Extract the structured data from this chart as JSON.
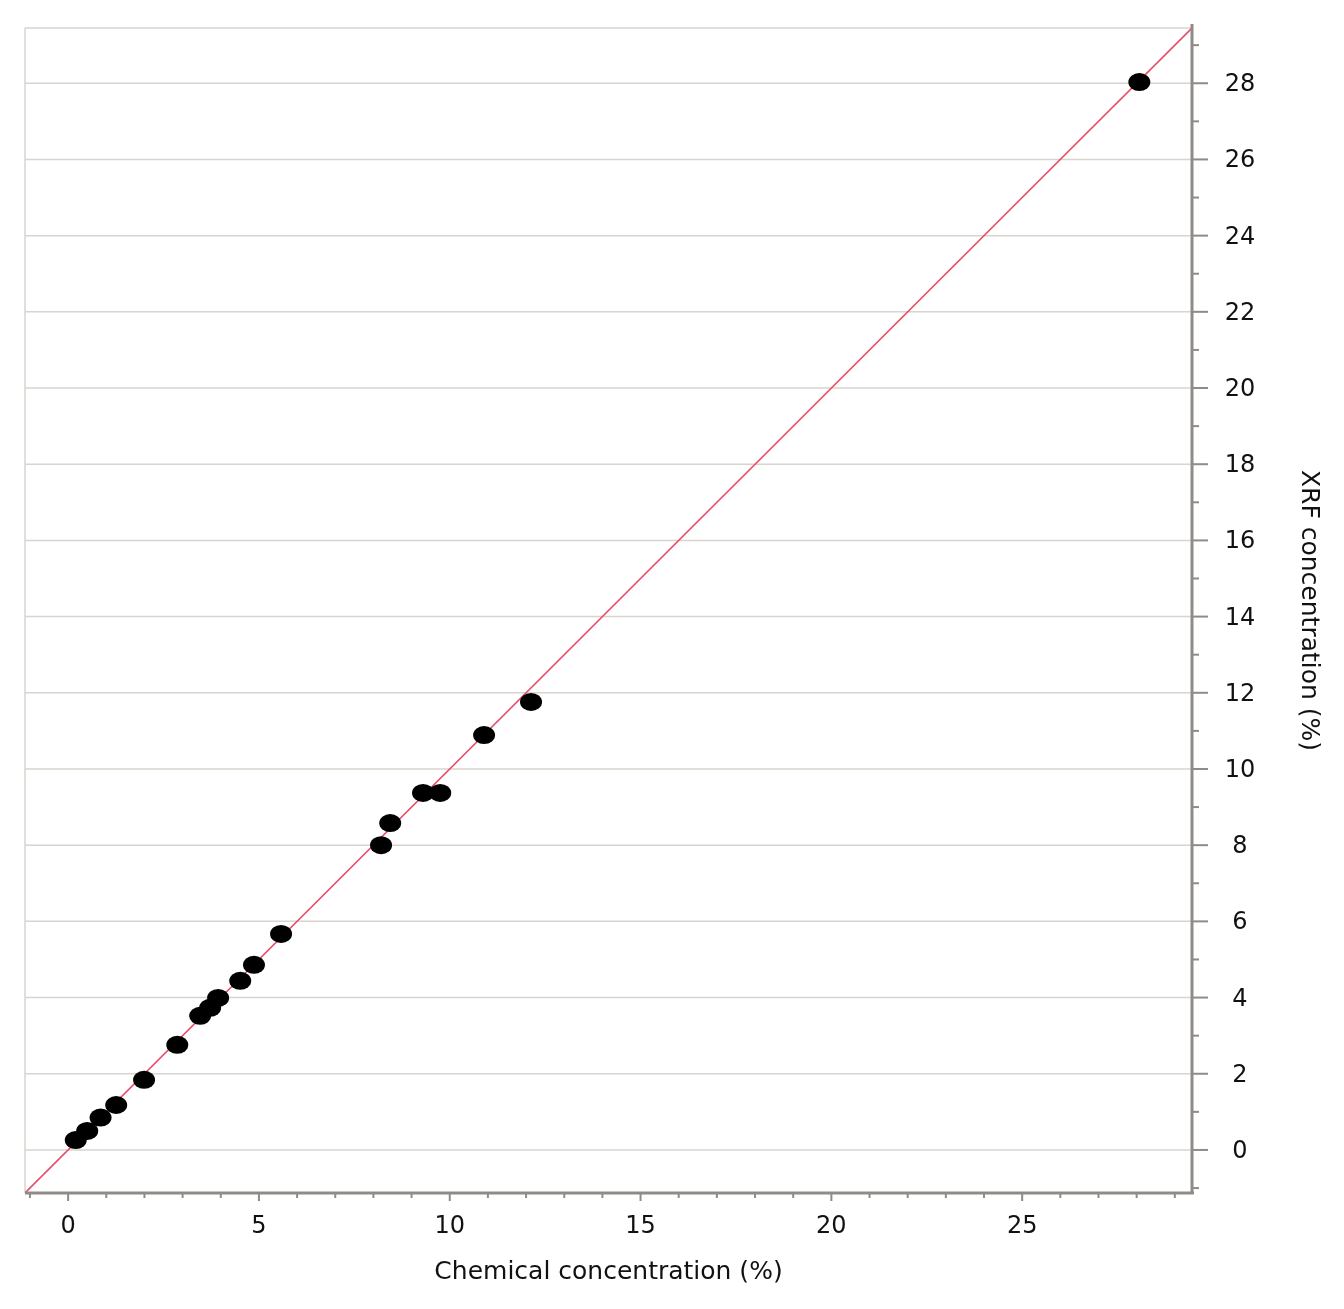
{
  "chart_data": {
    "type": "scatter",
    "xlabel": "Chemical concentration (%)",
    "ylabel": "XRF concentration (%)",
    "xlim": [
      -1.13,
      29.45
    ],
    "ylim": [
      -1.13,
      29.45
    ],
    "xticks": [
      {
        "value": -1,
        "label": null
      },
      0,
      {
        "value": 1,
        "label": null
      },
      {
        "value": 2,
        "label": null
      },
      {
        "value": 3,
        "label": null
      },
      {
        "value": 4,
        "label": null
      },
      5,
      {
        "value": 6,
        "label": null
      },
      {
        "value": 7,
        "label": null
      },
      {
        "value": 8,
        "label": null
      },
      {
        "value": 9,
        "label": null
      },
      10,
      {
        "value": 11,
        "label": null
      },
      {
        "value": 12,
        "label": null
      },
      {
        "value": 13,
        "label": null
      },
      {
        "value": 14,
        "label": null
      },
      15,
      {
        "value": 16,
        "label": null
      },
      {
        "value": 17,
        "label": null
      },
      {
        "value": 18,
        "label": null
      },
      {
        "value": 19,
        "label": null
      },
      20,
      {
        "value": 21,
        "label": null
      },
      {
        "value": 22,
        "label": null
      },
      {
        "value": 23,
        "label": null
      },
      {
        "value": 24,
        "label": null
      },
      25,
      {
        "value": 26,
        "label": null
      },
      {
        "value": 27,
        "label": null
      },
      {
        "value": 28,
        "label": null
      },
      {
        "value": 29,
        "label": null
      }
    ],
    "yticks": [
      {
        "value": -1,
        "label": null
      },
      0,
      {
        "value": 1,
        "label": null
      },
      2,
      {
        "value": 3,
        "label": null
      },
      4,
      {
        "value": 5,
        "label": null
      },
      6,
      {
        "value": 7,
        "label": null
      },
      8,
      {
        "value": 9,
        "label": null
      },
      10,
      {
        "value": 11,
        "label": null
      },
      12,
      {
        "value": 13,
        "label": null
      },
      14,
      {
        "value": 15,
        "label": null
      },
      16,
      {
        "value": 17,
        "label": null
      },
      18,
      {
        "value": 19,
        "label": null
      },
      20,
      {
        "value": 21,
        "label": null
      },
      22,
      {
        "value": 23,
        "label": null
      },
      24,
      {
        "value": 25,
        "label": null
      },
      26,
      {
        "value": 27,
        "label": null
      },
      28,
      {
        "value": 29,
        "label": null
      }
    ],
    "grid": "y",
    "series": [
      {
        "color": "#000000",
        "marker": "circle",
        "x": [
          0.2,
          0.5,
          0.85,
          1.26,
          1.99,
          2.86,
          3.46,
          3.72,
          3.93,
          4.51,
          4.87,
          5.58,
          8.2,
          8.44,
          9.3,
          9.75,
          10.9,
          12.13,
          28.07
        ],
        "values": [
          0.26,
          0.5,
          0.85,
          1.18,
          1.84,
          2.76,
          3.52,
          3.73,
          3.99,
          4.44,
          4.86,
          5.67,
          8.0,
          8.58,
          9.37,
          9.37,
          10.89,
          11.76,
          28.03
        ]
      },
      {
        "type": "line",
        "color": "#e8506a",
        "marker": "none",
        "x": [
          -1.13,
          29.45
        ],
        "values": [
          -1.13,
          29.45
        ]
      }
    ]
  }
}
